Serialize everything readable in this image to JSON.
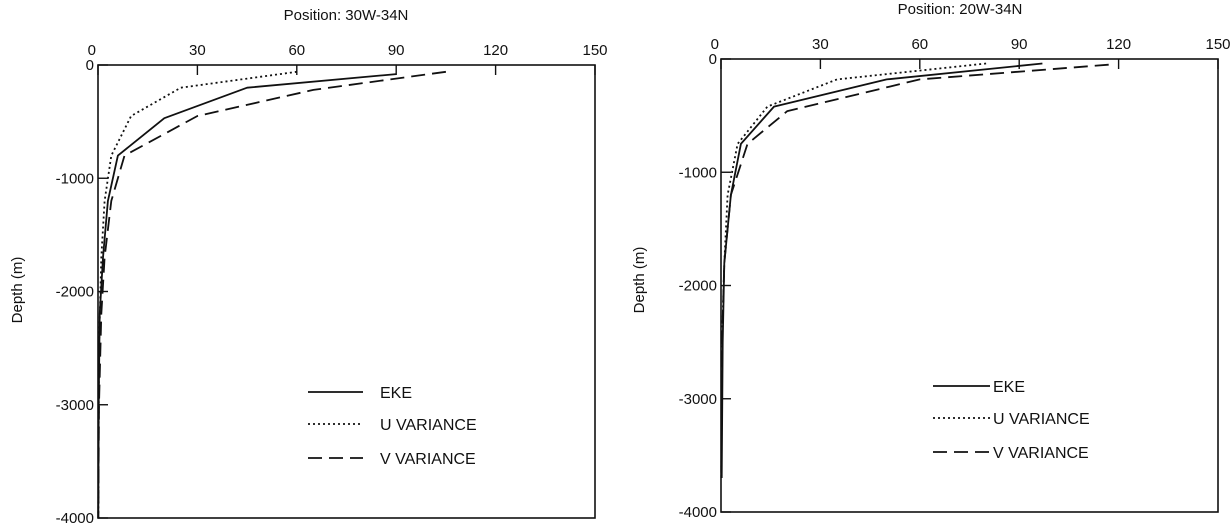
{
  "chart_data": [
    {
      "type": "line",
      "title": "Position: 30W-34N",
      "xlabel": "",
      "ylabel": "Depth (m)",
      "xlim": [
        0,
        150
      ],
      "ylim": [
        -4000,
        0
      ],
      "x_ticks": [
        0,
        30,
        60,
        90,
        120,
        150
      ],
      "y_ticks": [
        0,
        -1000,
        -2000,
        -3000,
        -4000
      ],
      "x_axis_position": "top",
      "grid": false,
      "legend": "bottom-right",
      "series": [
        {
          "name": "EKE",
          "style": "solid",
          "points": [
            [
              90,
              -80
            ],
            [
              45,
              -200
            ],
            [
              20,
              -470
            ],
            [
              6,
              -800
            ],
            [
              3,
              -1200
            ],
            [
              1.5,
              -1700
            ],
            [
              0.5,
              -2200
            ],
            [
              0.2,
              -3000
            ],
            [
              0.1,
              -4000
            ]
          ]
        },
        {
          "name": "U VARIANCE",
          "style": "dotted",
          "points": [
            [
              60,
              -60
            ],
            [
              25,
              -200
            ],
            [
              10,
              -450
            ],
            [
              4,
              -800
            ],
            [
              2,
              -1200
            ],
            [
              1,
              -1700
            ],
            [
              0.3,
              -2500
            ],
            [
              0.1,
              -4000
            ]
          ]
        },
        {
          "name": "V VARIANCE",
          "style": "dashed",
          "points": [
            [
              105,
              -60
            ],
            [
              65,
              -220
            ],
            [
              30,
              -450
            ],
            [
              8,
              -800
            ],
            [
              4,
              -1200
            ],
            [
              2,
              -1700
            ],
            [
              1,
              -2200
            ],
            [
              0.3,
              -3000
            ],
            [
              0.1,
              -4000
            ]
          ]
        }
      ]
    },
    {
      "type": "line",
      "title": "Position: 20W-34N",
      "xlabel": "",
      "ylabel": "Depth (m)",
      "xlim": [
        0,
        150
      ],
      "ylim": [
        -4000,
        0
      ],
      "x_ticks": [
        0,
        30,
        60,
        90,
        120,
        150
      ],
      "y_ticks": [
        0,
        -1000,
        -2000,
        -3000,
        -4000
      ],
      "x_axis_position": "top",
      "grid": false,
      "legend": "bottom-right",
      "series": [
        {
          "name": "EKE",
          "style": "solid",
          "points": [
            [
              97,
              -40
            ],
            [
              50,
              -180
            ],
            [
              16,
              -420
            ],
            [
              6,
              -750
            ],
            [
              3,
              -1200
            ],
            [
              1,
              -1800
            ],
            [
              0.5,
              -2500
            ],
            [
              0.2,
              -3700
            ]
          ]
        },
        {
          "name": "U VARIANCE",
          "style": "dotted",
          "points": [
            [
              80,
              -40
            ],
            [
              35,
              -180
            ],
            [
              14,
              -420
            ],
            [
              5,
              -750
            ],
            [
              2,
              -1200
            ],
            [
              1,
              -1800
            ],
            [
              0.3,
              -2500
            ],
            [
              0.1,
              -3700
            ]
          ]
        },
        {
          "name": "V VARIANCE",
          "style": "dashed",
          "points": [
            [
              117,
              -50
            ],
            [
              60,
              -180
            ],
            [
              20,
              -460
            ],
            [
              8,
              -750
            ],
            [
              3,
              -1200
            ],
            [
              1,
              -1800
            ],
            [
              0.3,
              -2500
            ],
            [
              0.1,
              -3700
            ]
          ]
        }
      ]
    }
  ]
}
